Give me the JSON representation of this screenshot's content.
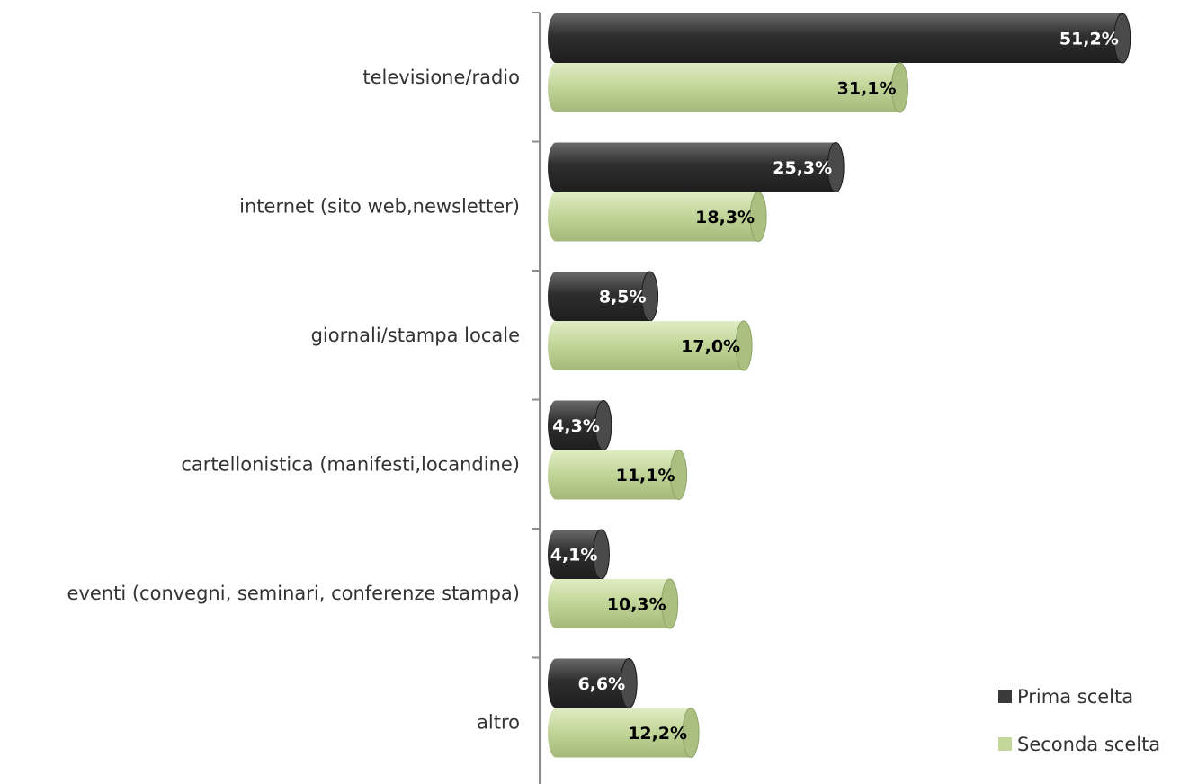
{
  "chart_data": {
    "type": "bar",
    "orientation": "horizontal",
    "title": "",
    "xlabel": "",
    "ylabel": "",
    "xlim": [
      0,
      55
    ],
    "grid": false,
    "legend_position": "bottom-right",
    "categories": [
      "televisione/radio",
      "internet (sito web,newsletter)",
      "giornali/stampa locale",
      "cartellonistica (manifesti,locandine)",
      "eventi (convegni, seminari, conferenze stampa)",
      "altro"
    ],
    "series": [
      {
        "name": "Prima scelta",
        "color": "#3a3a3a",
        "label_color": "#ffffff",
        "values": [
          51.2,
          25.3,
          8.5,
          4.3,
          4.1,
          6.6
        ],
        "labels": [
          "51,2%",
          "25,3%",
          "8,5%",
          "4,3%",
          "4,1%",
          "6,6%"
        ]
      },
      {
        "name": "Seconda scelta",
        "color": "#c4d79b",
        "label_color": "#000000",
        "values": [
          31.1,
          18.3,
          17.0,
          11.1,
          10.3,
          12.2
        ],
        "labels": [
          "31,1%",
          "18,3%",
          "17,0%",
          "11,1%",
          "10,3%",
          "12,2%"
        ]
      }
    ]
  }
}
